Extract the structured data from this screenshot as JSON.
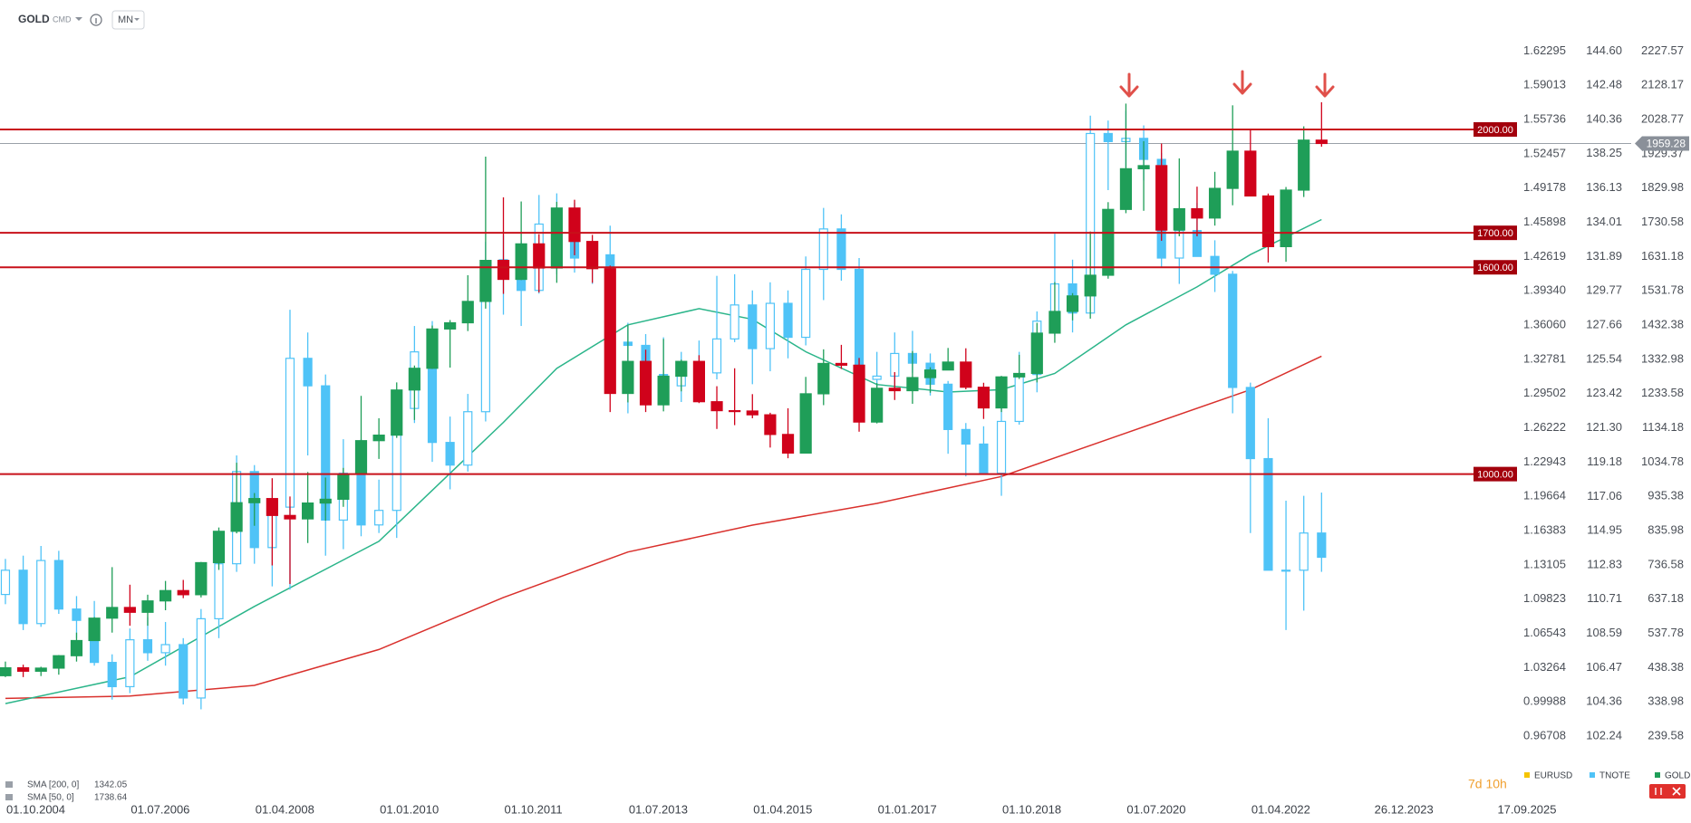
{
  "chart_data": {
    "type": "candlestick",
    "symbol": "GOLD",
    "symbol_type": "CMD",
    "interval": "MN",
    "countdown": "7d 10h",
    "x": [
      2004.75,
      2005,
      2005.25,
      2005.5,
      2005.75,
      2006,
      2006.25,
      2006.5,
      2006.75,
      2007,
      2007.25,
      2007.5,
      2007.75,
      2008,
      2008.25,
      2008.5,
      2008.75,
      2009,
      2009.25,
      2009.5,
      2009.75,
      2010,
      2010.25,
      2010.5,
      2010.75,
      2011,
      2011.25,
      2011.5,
      2011.75,
      2012,
      2012.25,
      2012.5,
      2012.75,
      2013,
      2013.25,
      2013.5,
      2013.75,
      2014,
      2014.25,
      2014.5,
      2014.75,
      2015,
      2015.25,
      2015.5,
      2015.75,
      2016,
      2016.25,
      2016.5,
      2016.75,
      2017,
      2017.25,
      2017.5,
      2017.75,
      2018,
      2018.25,
      2018.5,
      2018.75,
      2019,
      2019.25,
      2019.5,
      2019.75,
      2020,
      2020.25,
      2020.5,
      2020.75,
      2021,
      2021.25,
      2021.5,
      2021.75,
      2022,
      2022.25,
      2022.5,
      2022.75,
      2023,
      2023.25
    ],
    "series": [
      {
        "name": "TNOTE",
        "axis": "y2",
        "color": "#4fc3f7",
        "open": [
          111.0,
          112.5,
          109.2,
          113.1,
          110.1,
          109.4,
          106.8,
          105.3,
          108.2,
          107.4,
          107.9,
          104.6,
          109.5,
          112.9,
          118.6,
          113.9,
          116.4,
          125.6,
          123.9,
          115.6,
          118.5,
          115.3,
          116.2,
          122.5,
          126.0,
          120.4,
          119.0,
          122.3,
          131.1,
          131.7,
          129.8,
          133.9,
          133.5,
          131.8,
          132.0,
          126.6,
          126.4,
          124.6,
          123.9,
          125.0,
          124.7,
          126.8,
          128.9,
          126.2,
          129.0,
          126.9,
          131.1,
          133.6,
          131.1,
          124.3,
          124.5,
          125.9,
          125.3,
          124.0,
          121.2,
          120.3,
          118.5,
          121.7,
          124.6,
          127.9,
          130.2,
          128.4,
          139.5,
          139.0,
          139.2,
          137.9,
          131.8,
          133.5,
          131.9,
          130.8,
          123.8,
          119.4,
          112.5,
          112.5,
          114.8
        ],
        "high": [
          113.2,
          113.4,
          114.0,
          113.7,
          110.9,
          110.6,
          107.3,
          108.9,
          109.6,
          109.3,
          108.3,
          110.1,
          113.6,
          119.6,
          119.0,
          117.6,
          128.6,
          127.2,
          124.6,
          120.6,
          120.6,
          118.1,
          123.6,
          127.6,
          127.9,
          122.0,
          123.4,
          132.8,
          133.2,
          132.9,
          135.7,
          135.8,
          135.2,
          132.8,
          133.8,
          127.8,
          127.1,
          126.9,
          126.0,
          126.7,
          130.7,
          130.8,
          129.8,
          130.3,
          129.8,
          131.9,
          134.9,
          134.5,
          131.8,
          126.0,
          127.2,
          127.3,
          125.9,
          124.2,
          121.6,
          121.4,
          122.7,
          126.0,
          128.5,
          133.3,
          131.7,
          140.6,
          140.3,
          140.9,
          140.0,
          138.3,
          134.2,
          135.2,
          132.9,
          131.0,
          124.1,
          121.9,
          116.8,
          117.1,
          117.3
        ],
        "low": [
          110.4,
          108.8,
          109.0,
          109.8,
          108.3,
          106.6,
          104.5,
          104.9,
          106.9,
          106.6,
          104.2,
          103.9,
          108.3,
          112.4,
          112.9,
          111.5,
          111.3,
          119.6,
          113.4,
          113.8,
          114.6,
          114.8,
          114.5,
          121.6,
          119.2,
          117.5,
          118.6,
          121.7,
          128.3,
          127.6,
          129.6,
          130.8,
          130.9,
          130.2,
          124.2,
          122.2,
          122.9,
          123.3,
          122.9,
          123.0,
          124.3,
          126.6,
          124.0,
          124.8,
          125.6,
          126.4,
          129.2,
          130.4,
          123.4,
          122.9,
          123.6,
          124.7,
          123.3,
          119.7,
          118.3,
          118.4,
          117.1,
          121.5,
          123.5,
          127.0,
          127.2,
          128.4,
          136.0,
          137.4,
          136.6,
          131.2,
          130.2,
          131.9,
          129.7,
          122.2,
          114.8,
          112.5,
          108.8,
          110.0,
          112.4
        ],
        "close": [
          112.5,
          109.2,
          113.1,
          110.1,
          109.4,
          106.8,
          105.3,
          108.2,
          107.4,
          107.9,
          104.6,
          109.5,
          112.9,
          118.6,
          113.9,
          116.4,
          125.6,
          123.9,
          115.6,
          118.5,
          115.3,
          116.2,
          122.5,
          126.0,
          120.4,
          119.0,
          122.3,
          131.1,
          131.7,
          129.8,
          133.9,
          133.5,
          131.8,
          132.0,
          126.6,
          126.4,
          124.6,
          123.9,
          125.0,
          124.7,
          126.8,
          128.9,
          126.2,
          129.0,
          126.9,
          131.1,
          133.6,
          131.1,
          124.3,
          124.5,
          125.9,
          125.3,
          124.0,
          121.2,
          120.3,
          118.5,
          121.7,
          124.6,
          127.9,
          130.2,
          128.4,
          139.5,
          139.0,
          139.2,
          137.9,
          131.8,
          133.5,
          131.9,
          130.8,
          123.8,
          119.4,
          112.5,
          112.5,
          114.8,
          113.3
        ]
      },
      {
        "name": "GOLD",
        "color": "#1f9e58",
        "down_color": "#d0021b",
        "open": [
          415,
          438,
          428,
          437,
          473,
          517,
          582,
          613,
          599,
          632,
          662,
          650,
          743,
          834,
          917,
          929,
          880,
          870,
          916,
          927,
          1000,
          1097,
          1113,
          1244,
          1307,
          1421,
          1439,
          1501,
          1620,
          1565,
          1668,
          1598,
          1772,
          1675,
          1596,
          1234,
          1327,
          1201,
          1284,
          1327,
          1210,
          1184,
          1183,
          1172,
          1115,
          1061,
          1233,
          1321,
          1316,
          1151,
          1249,
          1242,
          1280,
          1302,
          1325,
          1252,
          1192,
          1282,
          1292,
          1409,
          1472,
          1517,
          1577,
          1768,
          1886,
          1895,
          1708,
          1770,
          1743,
          1829,
          1937,
          1807,
          1660,
          1824,
          1969
        ],
        "high": [
          456,
          447,
          441,
          475,
          540,
          585,
          730,
          679,
          650,
          690,
          693,
          745,
          845,
          1033,
          945,
          988,
          935,
          1006,
          990,
          1018,
          1227,
          1162,
          1266,
          1315,
          1431,
          1447,
          1577,
          1921,
          1803,
          1791,
          1696,
          1790,
          1796,
          1694,
          1605,
          1434,
          1361,
          1392,
          1332,
          1345,
          1255,
          1307,
          1232,
          1178,
          1191,
          1282,
          1362,
          1375,
          1337,
          1264,
          1296,
          1357,
          1310,
          1366,
          1365,
          1265,
          1285,
          1346,
          1439,
          1557,
          1525,
          1704,
          1789,
          2075,
          1966,
          1959,
          1916,
          1834,
          1877,
          2070,
          1998,
          1814,
          1833,
          2009,
          2079
        ],
        "low": [
          411,
          411,
          414,
          418,
          456,
          516,
          540,
          560,
          560,
          605,
          640,
          642,
          722,
          828,
          850,
          735,
          681,
          800,
          865,
          905,
          1000,
          1044,
          1105,
          1157,
          1305,
          1309,
          1415,
          1480,
          1523,
          1563,
          1527,
          1555,
          1635,
          1555,
          1180,
          1208,
          1180,
          1182,
          1240,
          1206,
          1131,
          1142,
          1162,
          1077,
          1046,
          1061,
          1200,
          1305,
          1123,
          1147,
          1215,
          1204,
          1236,
          1302,
          1246,
          1160,
          1180,
          1276,
          1266,
          1381,
          1446,
          1451,
          1567,
          1757,
          1764,
          1677,
          1690,
          1690,
          1721,
          1780,
          1806,
          1614,
          1616,
          1804,
          1950
        ],
        "close": [
          438,
          428,
          437,
          473,
          517,
          582,
          613,
          599,
          632,
          662,
          650,
          743,
          834,
          917,
          929,
          880,
          870,
          916,
          927,
          1000,
          1097,
          1113,
          1244,
          1307,
          1421,
          1439,
          1501,
          1620,
          1565,
          1668,
          1598,
          1772,
          1675,
          1596,
          1234,
          1327,
          1201,
          1284,
          1327,
          1210,
          1184,
          1183,
          1172,
          1115,
          1061,
          1233,
          1321,
          1316,
          1151,
          1249,
          1242,
          1280,
          1302,
          1325,
          1252,
          1192,
          1282,
          1292,
          1409,
          1472,
          1517,
          1577,
          1768,
          1886,
          1895,
          1708,
          1770,
          1743,
          1829,
          1937,
          1807,
          1660,
          1824,
          1969,
          1959.28
        ]
      }
    ],
    "overlays": [
      {
        "name": "SMA [200, 0]",
        "color": "#d9302c",
        "x": [
          2004.75,
          2006.5,
          2008.25,
          2010,
          2011.75,
          2013.5,
          2015.25,
          2017,
          2018.75,
          2020.5,
          2022.25,
          2023.25
        ],
        "values": [
          349,
          356,
          387,
          491,
          642,
          774,
          852,
          915,
          993,
          1119,
          1245,
          1342.05
        ]
      },
      {
        "name": "SMA [50, 0]",
        "color": "#2bb58a",
        "x": [
          2004.75,
          2006.5,
          2008.25,
          2010,
          2011.75,
          2012.5,
          2013.5,
          2014.5,
          2015.25,
          2016,
          2017,
          2018,
          2018.75,
          2019.5,
          2020.5,
          2021.5,
          2022.25,
          2023.25
        ],
        "values": [
          334,
          412,
          616,
          805,
          1150,
          1307,
          1433,
          1480,
          1449,
          1355,
          1260,
          1238,
          1245,
          1292,
          1433,
          1543,
          1637,
          1738.64
        ]
      }
    ],
    "levels": [
      {
        "value": 2000,
        "label": "2000.00"
      },
      {
        "value": 1700,
        "label": "1700.00"
      },
      {
        "value": 1600,
        "label": "1600.00"
      },
      {
        "value": 1000,
        "label": "1000.00"
      }
    ],
    "level_color": "#c8101a",
    "price": 1959.28,
    "xlim": [
      2004.674,
      2026.01
    ],
    "xticks": [
      {
        "value": 2004.75,
        "label": "01.10.2004"
      },
      {
        "value": 2006.5,
        "label": "01.07.2006"
      },
      {
        "value": 2008.25,
        "label": "01.04.2008"
      },
      {
        "value": 2010,
        "label": "01.01.2010"
      },
      {
        "value": 2011.75,
        "label": "01.10.2011"
      },
      {
        "value": 2013.5,
        "label": "01.07.2013"
      },
      {
        "value": 2015.25,
        "label": "01.04.2015"
      },
      {
        "value": 2017,
        "label": "01.01.2017"
      },
      {
        "value": 2018.75,
        "label": "01.10.2018"
      },
      {
        "value": 2020.5,
        "label": "01.07.2020"
      },
      {
        "value": 2022.25,
        "label": "01.04.2022"
      },
      {
        "value": 2023.98,
        "label": "26.12.2023"
      },
      {
        "value": 2025.71,
        "label": "17.09.2025"
      }
    ],
    "ylim": [
      176.76,
      2265.26
    ],
    "yticks": [
      2227.57,
      2128.17,
      2028.77,
      1929.37,
      1829.98,
      1730.58,
      1631.18,
      1531.78,
      1432.38,
      1332.98,
      1233.58,
      1134.18,
      1034.78,
      935.38,
      835.98,
      736.58,
      637.18,
      537.78,
      438.38,
      338.98,
      239.58
    ],
    "y2lim": [
      100.902,
      145.403
    ],
    "y2ticks": [
      {
        "value": 144.6,
        "label": "144.60"
      },
      142.48,
      140.36,
      138.25,
      136.13,
      134.01,
      131.89,
      129.77,
      127.66,
      125.54,
      123.42,
      {
        "value": 121.3,
        "label": "121.30"
      },
      119.18,
      117.06,
      114.95,
      112.83,
      110.71,
      108.59,
      106.47,
      104.36,
      102.24
    ],
    "y3_label": "EURUSD",
    "y3_color": "#f5c400",
    "y3lim": [
      0.94638,
      1.63538
    ],
    "y3ticks": [
      1.62295,
      1.59013,
      1.55736,
      1.52457,
      1.49178,
      1.45898,
      1.42619,
      {
        "value": 1.3934,
        "label": "1.39340"
      },
      {
        "value": 1.3606,
        "label": "1.36060"
      },
      1.32781,
      1.29502,
      1.26222,
      1.22943,
      1.19664,
      1.16383,
      1.13105,
      1.09823,
      1.06543,
      1.03264,
      0.99988,
      0.96708
    ]
  }
}
